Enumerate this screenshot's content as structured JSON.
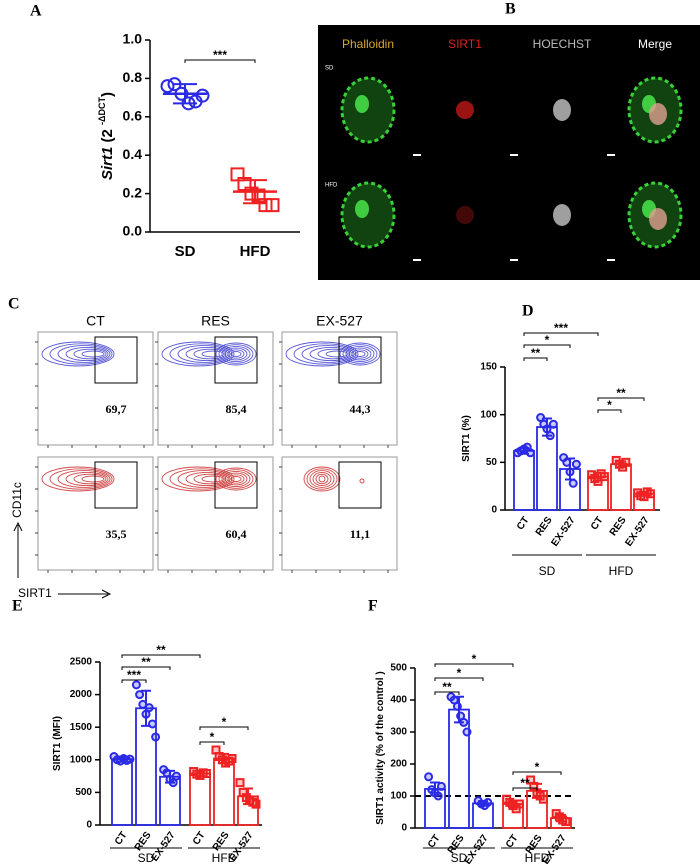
{
  "chart_data": [
    {
      "type": "dot",
      "panel_label": "A",
      "ylabel_parts": [
        "Sirt1",
        " (2 ",
        "-ΔDCT",
        ")"
      ],
      "ylim": [
        0,
        1.0
      ],
      "yticks": [
        {
          "value": 0,
          "label": "0.0"
        },
        {
          "value": 0.2,
          "label": "0.2"
        },
        {
          "value": 0.4,
          "label": "0.4"
        },
        {
          "value": 0.6,
          "label": "0.6"
        },
        {
          "value": 0.8,
          "label": "0.8"
        },
        {
          "value": 1.0,
          "label": "1.0"
        }
      ],
      "categories": [
        "SD",
        "HFD"
      ],
      "colors": [
        "#2a2ae6",
        "#ee2222"
      ],
      "markers": [
        "circle",
        "square"
      ],
      "points": [
        [
          0.76,
          0.77,
          0.72,
          0.67,
          0.68,
          0.71
        ],
        [
          0.3,
          0.25,
          0.2,
          0.19,
          0.14,
          0.14
        ]
      ],
      "means": [
        0.72,
        0.21
      ],
      "errors": [
        0.05,
        0.06
      ],
      "significance": [
        {
          "pair": [
            0,
            1
          ],
          "label": "***"
        }
      ],
      "groups": []
    },
    {
      "type": "dot",
      "panel_label": "D",
      "ylabel_parts": [
        "SIRT1 (%)"
      ],
      "ylim": [
        0,
        150
      ],
      "yticks": [
        0,
        50,
        100,
        150
      ],
      "categories": [
        "CT",
        "RES",
        "EX-527",
        "CT",
        "RES",
        "EX-527"
      ],
      "colors": [
        "#2a2ae6",
        "#2a2ae6",
        "#2a2ae6",
        "#ee2222",
        "#ee2222",
        "#ee2222"
      ],
      "markers": [
        "circle",
        "circle",
        "circle",
        "square",
        "square",
        "square"
      ],
      "points": [
        [
          60,
          62,
          64,
          66,
          60
        ],
        [
          97,
          90,
          85,
          78,
          90
        ],
        [
          55,
          50,
          40,
          28,
          48
        ],
        [
          37,
          33,
          30,
          38,
          35
        ],
        [
          52,
          48,
          45,
          50
        ],
        [
          18,
          15,
          14,
          19,
          17
        ]
      ],
      "means": [
        62,
        87,
        43,
        35,
        48,
        17
      ],
      "errors": [
        3,
        9,
        11,
        4,
        3,
        2
      ],
      "significance": [
        {
          "pair": [
            0,
            3
          ],
          "label": "***"
        },
        {
          "pair": [
            0,
            2
          ],
          "label": "*"
        },
        {
          "pair": [
            0,
            1
          ],
          "label": "**"
        },
        {
          "pair": [
            3,
            5
          ],
          "label": "**"
        },
        {
          "pair": [
            3,
            4
          ],
          "label": "*"
        }
      ],
      "groups": [
        {
          "label": "SD",
          "categories": [
            0,
            2
          ]
        },
        {
          "label": "HFD",
          "categories": [
            3,
            5
          ]
        }
      ]
    },
    {
      "type": "dot",
      "panel_label": "E",
      "ylabel_parts": [
        "SIRT1 (MFI)"
      ],
      "ylim": [
        0,
        2500
      ],
      "yticks": [
        0,
        500,
        1000,
        1500,
        2000,
        2500
      ],
      "categories": [
        "CT",
        "RES",
        "EX-527",
        "CT",
        "RES",
        "EX-527"
      ],
      "colors": [
        "#2a2ae6",
        "#2a2ae6",
        "#2a2ae6",
        "#ee2222",
        "#ee2222",
        "#ee2222"
      ],
      "markers": [
        "circle",
        "circle",
        "circle",
        "square",
        "square",
        "square"
      ],
      "points": [
        [
          1050,
          1000,
          980,
          1020,
          990,
          1010
        ],
        [
          2150,
          2000,
          1850,
          1700,
          1800,
          1550,
          1350
        ],
        [
          850,
          800,
          700,
          650,
          750
        ],
        [
          820,
          780,
          760,
          800,
          790
        ],
        [
          1150,
          1050,
          1000,
          950,
          980,
          1020
        ],
        [
          650,
          500,
          420,
          380,
          350,
          320
        ]
      ],
      "means": [
        1010,
        1790,
        740,
        790,
        1020,
        440
      ],
      "errors": [
        40,
        270,
        90,
        40,
        70,
        120
      ],
      "significance": [
        {
          "pair": [
            0,
            3
          ],
          "label": "**"
        },
        {
          "pair": [
            0,
            2
          ],
          "label": "**"
        },
        {
          "pair": [
            0,
            1
          ],
          "label": "***"
        },
        {
          "pair": [
            3,
            5
          ],
          "label": "*"
        },
        {
          "pair": [
            3,
            4
          ],
          "label": "*"
        }
      ],
      "groups": [
        {
          "label": "SD",
          "categories": [
            0,
            2
          ]
        },
        {
          "label": "HFD",
          "categories": [
            3,
            5
          ]
        }
      ]
    },
    {
      "type": "dot",
      "panel_label": "F",
      "ylabel_parts": [
        "SIRT1 activity (% of the control )"
      ],
      "ylim": [
        0,
        500
      ],
      "yticks": [
        0,
        100,
        200,
        300,
        400,
        500
      ],
      "categories": [
        "CT",
        "RES",
        "EX-527",
        "CT",
        "RES",
        "EX-527"
      ],
      "colors": [
        "#2a2ae6",
        "#2a2ae6",
        "#2a2ae6",
        "#ee2222",
        "#ee2222",
        "#ee2222"
      ],
      "markers": [
        "circle",
        "circle",
        "circle",
        "square",
        "square",
        "square"
      ],
      "points": [
        [
          160,
          120,
          110,
          100,
          130
        ],
        [
          410,
          400,
          380,
          350,
          330,
          300
        ],
        [
          85,
          75,
          70,
          80
        ],
        [
          90,
          80,
          70,
          60,
          75
        ],
        [
          150,
          130,
          110,
          100,
          90
        ],
        [
          45,
          35,
          25,
          20
        ]
      ],
      "means": [
        122,
        370,
        77,
        75,
        116,
        31
      ],
      "errors": [
        20,
        40,
        7,
        10,
        22,
        10
      ],
      "reference_line": 100,
      "significance": [
        {
          "pair": [
            0,
            3
          ],
          "label": "*"
        },
        {
          "pair": [
            0,
            2
          ],
          "label": "*"
        },
        {
          "pair": [
            0,
            1
          ],
          "label": "**"
        },
        {
          "pair": [
            3,
            5
          ],
          "label": "*"
        },
        {
          "pair": [
            3,
            4
          ],
          "label": "**"
        }
      ],
      "groups": [
        {
          "label": "SD",
          "categories": [
            0,
            2
          ]
        },
        {
          "label": "HFD",
          "categories": [
            3,
            5
          ]
        }
      ]
    }
  ],
  "microscopy": {
    "panel_label": "B",
    "columns": [
      "Phalloidin",
      "SIRT1",
      "HOECHST",
      "Merge"
    ],
    "column_colors": [
      "#d8a928",
      "#e02020",
      "#bbbbbb",
      "#ffffff"
    ],
    "rows": [
      "SD",
      "HFD"
    ]
  },
  "flow": {
    "panel_label": "C",
    "columns": [
      "CT",
      "RES",
      "EX-527"
    ],
    "gate_values": [
      [
        "69,7",
        "85,4",
        "44,3"
      ],
      [
        "35,5",
        "60,4",
        "11,1"
      ]
    ],
    "row_colors": [
      "#5a5ad6",
      "#d24a4a"
    ],
    "ylabel": "CD11c",
    "xlabel": "SIRT1"
  }
}
